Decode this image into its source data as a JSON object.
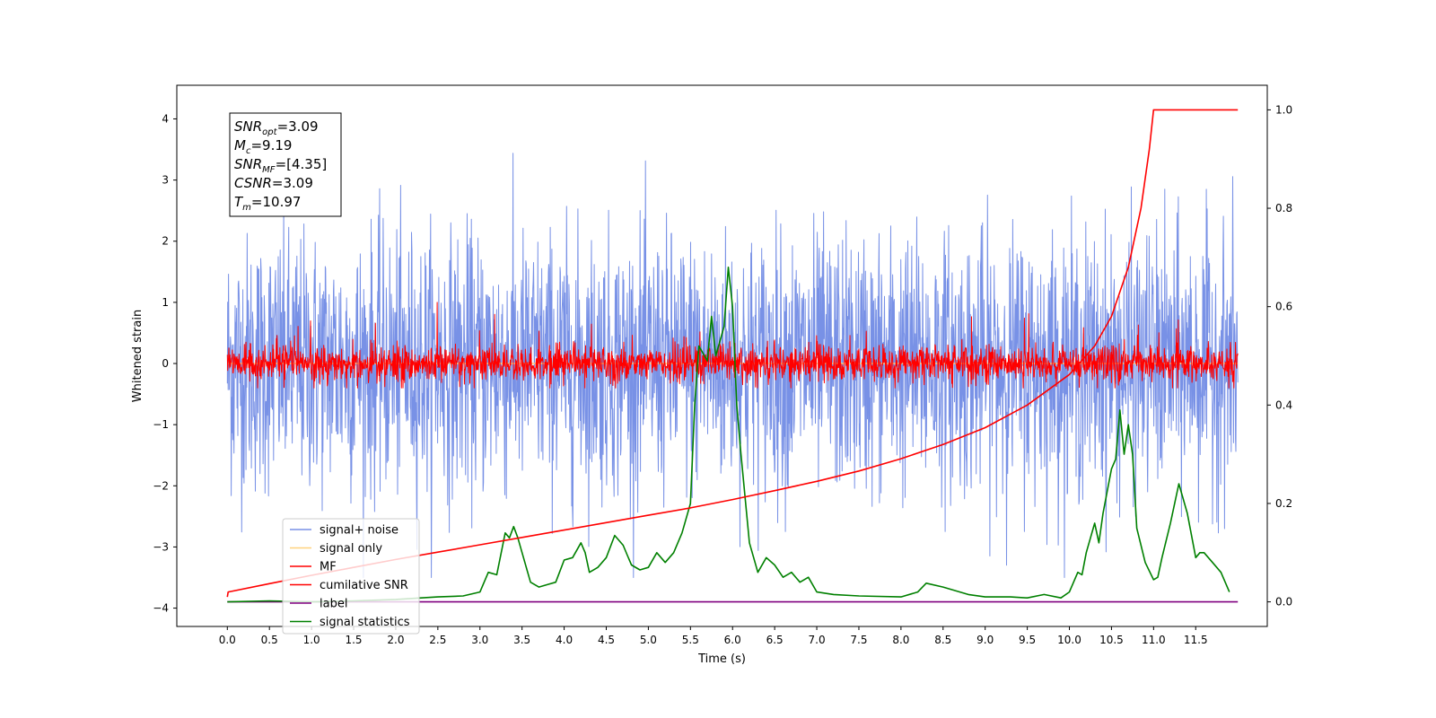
{
  "chart_data": {
    "type": "line",
    "xlabel": "Time (s)",
    "ylabel": "Whitened strain",
    "xlim": [
      -0.6,
      12.35
    ],
    "ylim": [
      -4.3,
      4.55
    ],
    "y2lim": [
      -0.05,
      1.05
    ],
    "x_ticks": [
      "0.0",
      "0.5",
      "1.0",
      "1.5",
      "2.0",
      "2.5",
      "3.0",
      "3.5",
      "4.0",
      "4.5",
      "5.0",
      "5.5",
      "6.0",
      "6.5",
      "7.0",
      "7.5",
      "8.0",
      "8.5",
      "9.0",
      "9.5",
      "10.0",
      "10.5",
      "11.0",
      "11.5"
    ],
    "y_ticks": [
      "−4",
      "−3",
      "−2",
      "−1",
      "0",
      "1",
      "2",
      "3",
      "4"
    ],
    "y2_ticks": [
      "0.0",
      "0.2",
      "0.4",
      "0.6",
      "0.8",
      "1.0"
    ],
    "annotation": [
      {
        "base": "SNR",
        "sub": "opt",
        "value": "=3.09"
      },
      {
        "base": "M",
        "sub": "c",
        "value": "=9.19"
      },
      {
        "base": "SNR",
        "sub": "MF",
        "value": "=[4.35]"
      },
      {
        "base": "CSNR",
        "sub": "",
        "value": "=3.09"
      },
      {
        "base": "T",
        "sub": "m",
        "value": "=10.97"
      }
    ],
    "legend": {
      "placement": "lower-left",
      "entries": [
        {
          "label": "signal+ noise",
          "color": "#7891e6"
        },
        {
          "label": "signal only",
          "color": "#ffd27f"
        },
        {
          "label": "MF",
          "color": "#ff0000"
        },
        {
          "label": "cumilative SNR",
          "color": "#ff0000"
        },
        {
          "label": "label",
          "color": "#800080"
        },
        {
          "label": "signal statistics",
          "color": "#008000"
        }
      ]
    },
    "series": [
      {
        "name": "signal+ noise",
        "axis": "left",
        "color": "#7891e6",
        "kind": "noise",
        "duration": 12.0,
        "sigma": 1.05,
        "clip": [
          -3.5,
          4.15
        ]
      },
      {
        "name": "signal only",
        "axis": "left",
        "color": "#ffd27f",
        "kind": "flat",
        "x": [
          0,
          12.0
        ],
        "y": [
          0,
          0
        ]
      },
      {
        "name": "MF",
        "axis": "left",
        "color": "#ff0000",
        "kind": "noise",
        "duration": 12.0,
        "sigma": 0.2,
        "clip": [
          -0.4,
          1.0
        ]
      },
      {
        "name": "cumilative SNR",
        "axis": "right",
        "x": [
          0.0,
          0.01,
          0.5,
          1.0,
          1.5,
          2.0,
          2.5,
          3.0,
          3.5,
          4.0,
          4.5,
          5.0,
          5.5,
          6.0,
          6.5,
          7.0,
          7.5,
          8.0,
          8.5,
          9.0,
          9.5,
          10.0,
          10.3,
          10.5,
          10.7,
          10.85,
          10.95,
          11.0,
          12.0
        ],
        "y": [
          0.01,
          0.02,
          0.037,
          0.054,
          0.07,
          0.086,
          0.101,
          0.116,
          0.131,
          0.146,
          0.161,
          0.176,
          0.191,
          0.208,
          0.226,
          0.245,
          0.266,
          0.291,
          0.32,
          0.354,
          0.4,
          0.462,
          0.52,
          0.58,
          0.68,
          0.8,
          0.92,
          1.0,
          1.0
        ]
      },
      {
        "name": "label",
        "axis": "right",
        "x": [
          0.0,
          12.0
        ],
        "y": [
          0.0,
          0.0
        ]
      },
      {
        "name": "signal statistics",
        "axis": "right",
        "x": [
          0.0,
          0.5,
          1.0,
          1.5,
          2.0,
          2.3,
          2.5,
          2.8,
          3.0,
          3.1,
          3.2,
          3.3,
          3.35,
          3.4,
          3.45,
          3.5,
          3.6,
          3.7,
          3.8,
          3.9,
          4.0,
          4.1,
          4.2,
          4.25,
          4.3,
          4.4,
          4.5,
          4.6,
          4.7,
          4.75,
          4.8,
          4.9,
          5.0,
          5.1,
          5.2,
          5.3,
          5.4,
          5.5,
          5.55,
          5.6,
          5.7,
          5.75,
          5.8,
          5.9,
          5.95,
          6.0,
          6.05,
          6.1,
          6.2,
          6.3,
          6.4,
          6.5,
          6.6,
          6.7,
          6.8,
          6.9,
          7.0,
          7.2,
          7.5,
          8.0,
          8.2,
          8.3,
          8.5,
          8.8,
          9.0,
          9.3,
          9.5,
          9.7,
          9.9,
          10.0,
          10.1,
          10.15,
          10.2,
          10.3,
          10.35,
          10.4,
          10.5,
          10.55,
          10.6,
          10.65,
          10.7,
          10.75,
          10.8,
          10.9,
          11.0,
          11.05,
          11.1,
          11.2,
          11.3,
          11.4,
          11.5,
          11.55,
          11.6,
          11.7,
          11.8,
          11.9
        ],
        "y": [
          0.0,
          0.002,
          0.0,
          0.002,
          0.005,
          0.008,
          0.01,
          0.012,
          0.02,
          0.06,
          0.055,
          0.14,
          0.13,
          0.153,
          0.13,
          0.1,
          0.04,
          0.03,
          0.035,
          0.04,
          0.085,
          0.09,
          0.12,
          0.1,
          0.06,
          0.07,
          0.09,
          0.135,
          0.115,
          0.095,
          0.075,
          0.065,
          0.07,
          0.1,
          0.08,
          0.1,
          0.14,
          0.2,
          0.4,
          0.52,
          0.49,
          0.58,
          0.5,
          0.56,
          0.68,
          0.6,
          0.4,
          0.3,
          0.12,
          0.06,
          0.09,
          0.075,
          0.05,
          0.06,
          0.04,
          0.05,
          0.02,
          0.015,
          0.012,
          0.01,
          0.02,
          0.038,
          0.03,
          0.015,
          0.01,
          0.01,
          0.008,
          0.015,
          0.008,
          0.02,
          0.06,
          0.055,
          0.1,
          0.16,
          0.12,
          0.18,
          0.27,
          0.29,
          0.39,
          0.3,
          0.36,
          0.3,
          0.15,
          0.08,
          0.045,
          0.05,
          0.09,
          0.16,
          0.24,
          0.18,
          0.09,
          0.1,
          0.1,
          0.08,
          0.06,
          0.02
        ]
      }
    ]
  }
}
